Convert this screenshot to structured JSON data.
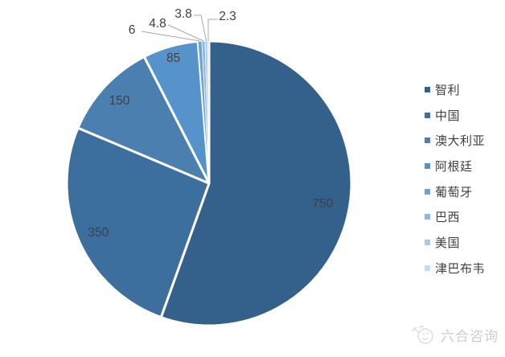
{
  "background": "#FFFFFF",
  "chart_data": {
    "type": "pie",
    "title": "",
    "categories": [
      "智利",
      "中国",
      "澳大利亚",
      "阿根廷",
      "葡萄牙",
      "巴西",
      "美国",
      "津巴布韦"
    ],
    "values": [
      750,
      350,
      150,
      85,
      6,
      4.8,
      3.8,
      2.3
    ],
    "value_labels": [
      "750",
      "350",
      "150",
      "85",
      "6",
      "4.8",
      "3.8",
      "2.3"
    ],
    "colors": [
      "#33618C",
      "#3D6F9E",
      "#4A7FB0",
      "#5693CB",
      "#6FA3D4",
      "#8CB8DF",
      "#A9CBE8",
      "#C6DDF0"
    ],
    "total": 1351.9,
    "start_angle_deg": 0,
    "direction": "clockwise",
    "slice_border_color": "#FFFFFF",
    "data_label_color": "#404040",
    "leader_line_color": "#A8A8A8",
    "legend_position": "right",
    "grid": false
  },
  "legend": {
    "items": [
      {
        "label": "智利",
        "color": "#33618C"
      },
      {
        "label": "中国",
        "color": "#3D6F9E"
      },
      {
        "label": "澳大利亚",
        "color": "#4A7FB0"
      },
      {
        "label": "阿根廷",
        "color": "#5693CB"
      },
      {
        "label": "葡萄牙",
        "color": "#6FA3D4"
      },
      {
        "label": "巴西",
        "color": "#8CB8DF"
      },
      {
        "label": "美国",
        "color": "#A9CBE8"
      },
      {
        "label": "津巴布韦",
        "color": "#C6DDF0"
      }
    ]
  },
  "watermark": {
    "logo": "goat-logo-icon",
    "text": "六合咨询",
    "color": "#CCCCCC"
  }
}
